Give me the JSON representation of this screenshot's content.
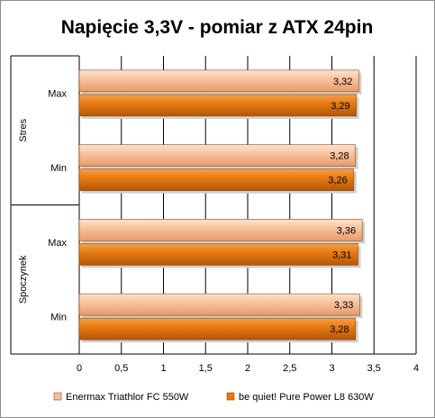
{
  "chart_data": {
    "type": "bar",
    "orientation": "horizontal",
    "title": "Napięcie 3,3V - pomiar z ATX 24pin",
    "groups": [
      {
        "name": "Stres",
        "categories": [
          "Max",
          "Min"
        ]
      },
      {
        "name": "Spoczynek",
        "categories": [
          "Max",
          "Min"
        ]
      }
    ],
    "series": [
      {
        "name": "Enermax Triathlor FC 550W",
        "color": "#f4b183",
        "values": [
          3.32,
          3.28,
          3.36,
          3.33
        ],
        "labels": [
          "3,32",
          "3,28",
          "3,36",
          "3,33"
        ]
      },
      {
        "name": "be quiet! Pure Power L8 630W",
        "color": "#e46c0a",
        "values": [
          3.29,
          3.26,
          3.31,
          3.28
        ],
        "labels": [
          "3,29",
          "3,26",
          "3,31",
          "3,28"
        ]
      }
    ],
    "xlim": [
      0,
      4
    ],
    "x_ticks": [
      0,
      0.5,
      1,
      1.5,
      2,
      2.5,
      3,
      3.5,
      4
    ],
    "x_tick_labels": [
      "0",
      "0,5",
      "1",
      "1,5",
      "2",
      "2,5",
      "3",
      "3,5",
      "4"
    ],
    "grid": "vertical",
    "legend_position": "bottom"
  }
}
